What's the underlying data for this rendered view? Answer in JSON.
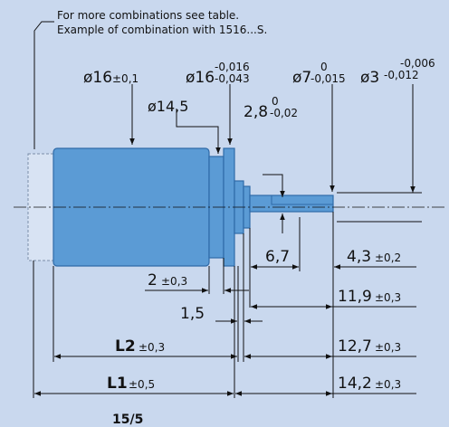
{
  "note": {
    "line1": "For more combinations see table.",
    "line2": "Example of combination with 1516...S."
  },
  "labels": {
    "d16_main": "ø16",
    "d16_tol": "±0,1",
    "d16b_main": "ø16",
    "d16b_tol_upper": "-0,016",
    "d16b_tol_lower": "-0,043",
    "d7_main": "ø7",
    "d7_tol_upper": "0",
    "d7_tol_lower": "-0,015",
    "d3_main": "ø3",
    "d3_tol_upper": "-0,006",
    "d3_tol_lower": "-0,012",
    "d14_5": "ø14,5",
    "d2_8_main": "2,8",
    "d2_8_tol_upper": "0",
    "d2_8_tol_lower": "-0,02",
    "dim_6_7": "6,7",
    "dim_4_3_main": "4,3",
    "dim_4_3_tol": "±0,2",
    "dim_2_main": "2",
    "dim_2_tol": "±0,3",
    "dim_11_9_main": "11,9",
    "dim_11_9_tol": "±0,3",
    "dim_1_5": "1,5",
    "dim_l2_main": "L2",
    "dim_l2_tol": "±0,3",
    "dim_12_7_main": "12,7",
    "dim_12_7_tol": "±0,3",
    "dim_l1_main": "L1",
    "dim_l1_tol": "±0,5",
    "dim_14_2_main": "14,2",
    "dim_14_2_tol": "±0,3"
  },
  "caption": "15/5",
  "colors": {
    "background": "#c9d8ee",
    "motor_body": "#5b9bd5",
    "motor_stroke": "#2f6aa8",
    "line": "#111111"
  }
}
